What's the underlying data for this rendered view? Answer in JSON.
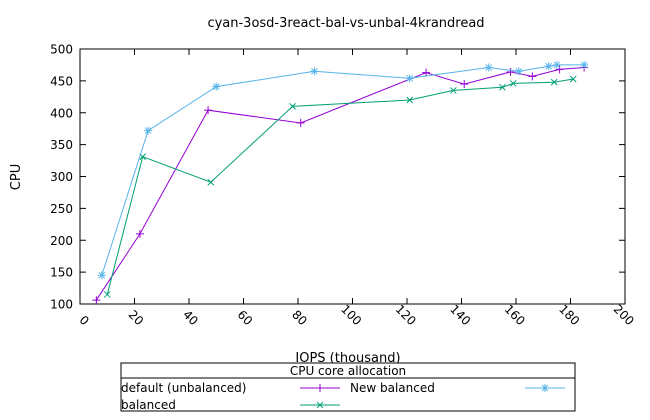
{
  "chart_data": {
    "type": "line",
    "title": "cyan-3osd-3react-bal-vs-unbal-4krandread",
    "xlabel": "IOPS (thousand)",
    "ylabel": "CPU",
    "xlim": [
      0,
      200
    ],
    "ylim": [
      100,
      500
    ],
    "xticks": [
      0,
      20,
      40,
      60,
      80,
      100,
      120,
      140,
      160,
      180,
      200
    ],
    "yticks": [
      100,
      150,
      200,
      250,
      300,
      350,
      400,
      450,
      500
    ],
    "grid": false,
    "legend": {
      "title": "CPU core allocation",
      "placement": "bottom-center",
      "entries": [
        "default (unbalanced)",
        "New balanced",
        "balanced"
      ]
    },
    "series": [
      {
        "name": "default (unbalanced)",
        "color": "#9400d3",
        "marker": "plus",
        "x": [
          6,
          22,
          47,
          81,
          127,
          141,
          158,
          166,
          176,
          185
        ],
        "y": [
          106,
          210,
          404,
          384,
          463,
          445,
          464,
          457,
          468,
          471
        ]
      },
      {
        "name": "balanced",
        "color": "#009e73",
        "marker": "cross",
        "x": [
          10,
          23,
          48,
          78,
          121,
          137,
          155,
          159,
          174,
          181
        ],
        "y": [
          115,
          331,
          291,
          410,
          420,
          435,
          440,
          446,
          448,
          453
        ]
      },
      {
        "name": "New balanced",
        "color": "#56b4e9",
        "marker": "star",
        "x": [
          8,
          25,
          50,
          86,
          121,
          150,
          161,
          172,
          175,
          185
        ],
        "y": [
          145,
          372,
          441,
          465,
          454,
          471,
          465,
          473,
          475,
          475
        ]
      }
    ]
  }
}
